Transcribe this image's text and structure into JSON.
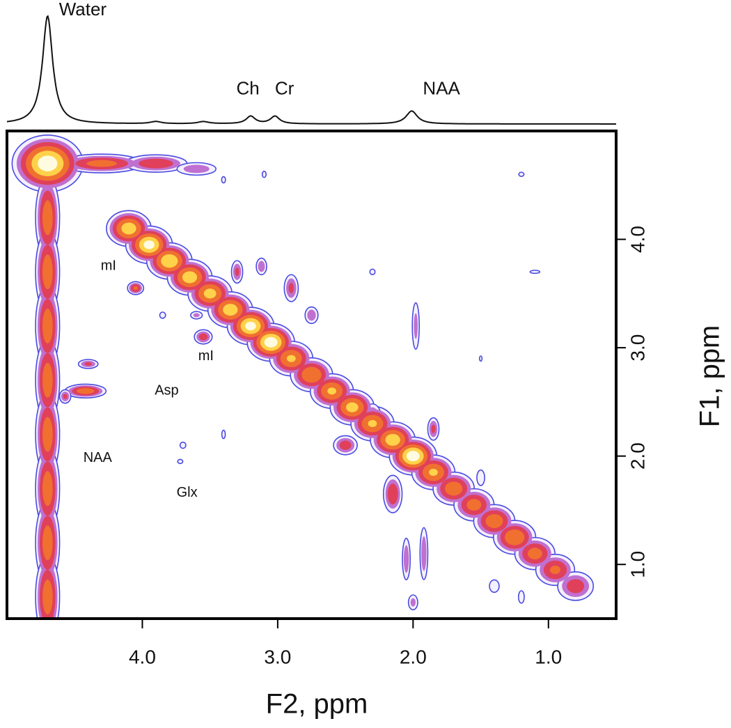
{
  "chart_data": {
    "type": "contour",
    "xlabel": "F2, ppm",
    "ylabel": "F1, ppm",
    "xlim": [
      5.0,
      0.5
    ],
    "ylim": [
      0.5,
      5.0
    ],
    "xticks": [
      {
        "value": 4,
        "label": "4.0"
      },
      {
        "value": 3,
        "label": "3.0"
      },
      {
        "value": 2,
        "label": "2.0"
      },
      {
        "value": 1,
        "label": "1.0"
      }
    ],
    "yticks": [
      {
        "value": 4,
        "label": "4.0"
      },
      {
        "value": 3,
        "label": "3.0"
      },
      {
        "value": 2,
        "label": "2.0"
      },
      {
        "value": 1,
        "label": "1.0"
      }
    ],
    "contour_levels": [
      0.12,
      0.2,
      0.3,
      0.45,
      0.65,
      0.85
    ],
    "contour_colors": [
      "#4a4ae0",
      "#c070d0",
      "#e0405a",
      "#f07030",
      "#ffd24a",
      "#fffbe0"
    ],
    "peaks": {
      "f2": [
        4.7,
        4.7,
        4.7,
        4.7,
        4.7,
        4.7,
        4.7,
        4.7,
        4.7,
        4.3,
        3.9,
        3.6,
        4.1,
        3.95,
        3.8,
        3.65,
        3.5,
        3.35,
        3.2,
        3.05,
        2.9,
        2.75,
        2.6,
        2.45,
        2.3,
        2.15,
        2.0,
        1.85,
        1.7,
        1.55,
        1.4,
        1.25,
        1.1,
        0.95,
        0.8,
        4.05,
        4.42,
        4.4,
        4.57,
        3.55,
        3.6,
        3.3,
        3.12,
        2.9,
        2.75,
        2.5,
        2.3,
        2.15,
        1.85,
        1.98,
        2.05,
        1.92,
        2.0,
        1.5,
        1.2,
        1.4,
        3.7,
        3.72,
        3.85,
        3.4,
        1.2,
        1.1,
        2.3,
        1.5,
        3.1,
        3.4
      ],
      "f1": [
        4.7,
        4.2,
        3.7,
        3.2,
        2.7,
        2.2,
        1.7,
        1.2,
        0.7,
        4.7,
        4.7,
        4.65,
        4.1,
        3.95,
        3.8,
        3.65,
        3.5,
        3.35,
        3.2,
        3.05,
        2.9,
        2.75,
        2.6,
        2.45,
        2.3,
        2.15,
        2.0,
        1.85,
        1.7,
        1.55,
        1.4,
        1.25,
        1.1,
        0.95,
        0.8,
        3.55,
        2.6,
        2.85,
        2.55,
        3.1,
        3.3,
        3.7,
        3.75,
        3.55,
        3.3,
        2.1,
        2.35,
        1.65,
        2.25,
        3.2,
        1.05,
        1.1,
        0.65,
        1.8,
        0.7,
        0.8,
        2.1,
        1.95,
        3.3,
        2.2,
        4.6,
        3.7,
        3.7,
        2.9,
        4.6,
        4.55
      ],
      "w2": [
        0.18,
        0.07,
        0.07,
        0.07,
        0.07,
        0.07,
        0.07,
        0.07,
        0.07,
        0.25,
        0.2,
        0.15,
        0.12,
        0.12,
        0.12,
        0.12,
        0.12,
        0.12,
        0.12,
        0.12,
        0.12,
        0.12,
        0.12,
        0.12,
        0.12,
        0.12,
        0.12,
        0.12,
        0.12,
        0.12,
        0.12,
        0.12,
        0.12,
        0.12,
        0.12,
        0.05,
        0.12,
        0.07,
        0.04,
        0.06,
        0.05,
        0.04,
        0.04,
        0.05,
        0.05,
        0.08,
        0.06,
        0.06,
        0.04,
        0.03,
        0.03,
        0.03,
        0.04,
        0.04,
        0.03,
        0.05,
        0.03,
        0.03,
        0.03,
        0.02,
        0.03,
        0.05,
        0.03,
        0.02,
        0.02,
        0.02
      ],
      "w1": [
        0.18,
        0.3,
        0.3,
        0.3,
        0.3,
        0.3,
        0.3,
        0.3,
        0.3,
        0.07,
        0.07,
        0.06,
        0.12,
        0.12,
        0.12,
        0.12,
        0.12,
        0.12,
        0.12,
        0.12,
        0.12,
        0.12,
        0.12,
        0.12,
        0.12,
        0.12,
        0.12,
        0.12,
        0.12,
        0.12,
        0.12,
        0.12,
        0.12,
        0.12,
        0.12,
        0.05,
        0.05,
        0.04,
        0.06,
        0.06,
        0.04,
        0.1,
        0.08,
        0.12,
        0.08,
        0.08,
        0.12,
        0.15,
        0.1,
        0.25,
        0.2,
        0.25,
        0.08,
        0.1,
        0.08,
        0.08,
        0.04,
        0.03,
        0.04,
        0.06,
        0.03,
        0.02,
        0.04,
        0.05,
        0.04,
        0.04
      ],
      "intensity": [
        1.0,
        0.6,
        0.6,
        0.6,
        0.6,
        0.6,
        0.6,
        0.6,
        0.6,
        0.55,
        0.45,
        0.3,
        0.8,
        0.95,
        0.85,
        0.8,
        0.75,
        0.8,
        0.95,
        1.0,
        0.7,
        0.65,
        0.7,
        0.75,
        0.7,
        0.8,
        1.0,
        0.7,
        0.6,
        0.55,
        0.6,
        0.65,
        0.55,
        0.5,
        0.4,
        0.5,
        0.6,
        0.35,
        0.35,
        0.4,
        0.25,
        0.35,
        0.3,
        0.35,
        0.3,
        0.4,
        0.4,
        0.45,
        0.35,
        0.25,
        0.3,
        0.3,
        0.25,
        0.2,
        0.2,
        0.2,
        0.2,
        0.18,
        0.2,
        0.18,
        0.18,
        0.2,
        0.18,
        0.15,
        0.2,
        0.2
      ]
    },
    "spectrum_peaks": {
      "ppm": [
        4.7,
        3.9,
        3.55,
        3.2,
        3.02,
        2.01
      ],
      "height": [
        1.0,
        0.02,
        0.02,
        0.07,
        0.07,
        0.12
      ],
      "width": [
        0.045,
        0.05,
        0.05,
        0.04,
        0.04,
        0.05
      ]
    },
    "spectrum_annotations": [
      {
        "text": "Water",
        "x": 4.44,
        "y": 1.05
      },
      {
        "text": "Ch",
        "x": 3.22,
        "y": 0.32
      },
      {
        "text": "Cr",
        "x": 2.95,
        "y": 0.32
      },
      {
        "text": "NAA",
        "x": 1.79,
        "y": 0.32
      }
    ],
    "annotations": [
      {
        "text": "mI",
        "x": 4.25,
        "y": 3.75
      },
      {
        "text": "mI",
        "x": 3.53,
        "y": 2.92
      },
      {
        "text": "Asp",
        "x": 3.82,
        "y": 2.6
      },
      {
        "text": "NAA",
        "x": 4.33,
        "y": 1.98
      },
      {
        "text": "Glx",
        "x": 3.67,
        "y": 1.66
      }
    ]
  }
}
